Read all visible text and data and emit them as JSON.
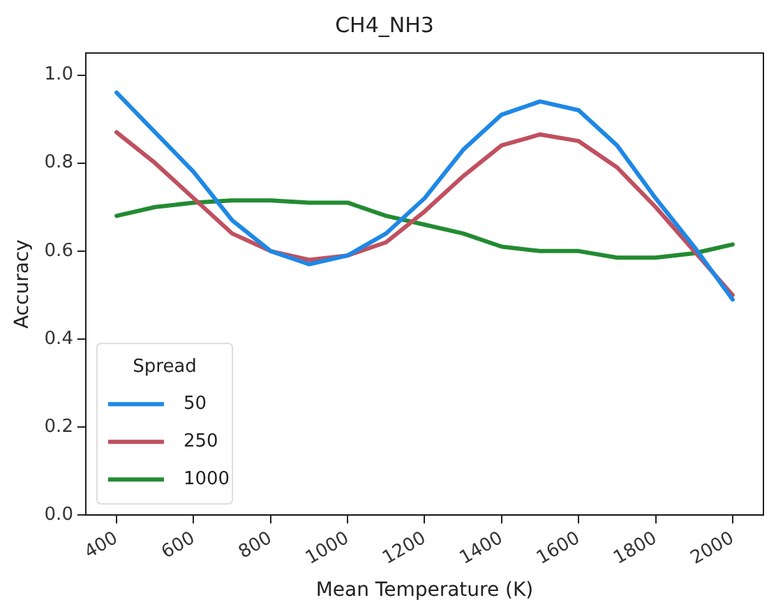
{
  "chart_data": {
    "type": "line",
    "title": "CH4_NH3",
    "xlabel": "Mean Temperature (K)",
    "ylabel": "Accuracy",
    "legend_title": "Spread",
    "legend": "bottom left",
    "grid": false,
    "marker": "none",
    "line_style": "solid",
    "x": [
      400,
      500,
      600,
      700,
      800,
      900,
      1000,
      1100,
      1200,
      1300,
      1400,
      1500,
      1600,
      1700,
      1800,
      1900,
      2000
    ],
    "xlim": [
      320,
      2080
    ],
    "xticks": [
      400,
      600,
      800,
      1000,
      1200,
      1400,
      1600,
      1800,
      2000
    ],
    "ylim": [
      0,
      1.05
    ],
    "yticks": [
      {
        "value": 0,
        "label": "0.0"
      },
      0.2,
      0.4,
      0.6,
      0.8,
      {
        "value": 1,
        "label": "1.0"
      }
    ],
    "series": [
      {
        "name": "50",
        "color": "#1e88e5",
        "values": [
          0.96,
          0.87,
          0.78,
          0.67,
          0.6,
          0.57,
          0.59,
          0.64,
          0.72,
          0.83,
          0.91,
          0.94,
          0.92,
          0.84,
          0.72,
          0.61,
          0.49
        ]
      },
      {
        "name": "250",
        "color": "#c0505f",
        "values": [
          0.87,
          0.8,
          0.72,
          0.64,
          0.6,
          0.58,
          0.59,
          0.62,
          0.69,
          0.77,
          0.84,
          0.865,
          0.85,
          0.79,
          0.7,
          0.6,
          0.5
        ]
      },
      {
        "name": "1000",
        "color": "#228b32",
        "values": [
          0.68,
          0.7,
          0.71,
          0.715,
          0.715,
          0.71,
          0.71,
          0.68,
          0.66,
          0.64,
          0.61,
          0.6,
          0.6,
          0.585,
          0.585,
          0.595,
          0.615
        ]
      }
    ]
  }
}
